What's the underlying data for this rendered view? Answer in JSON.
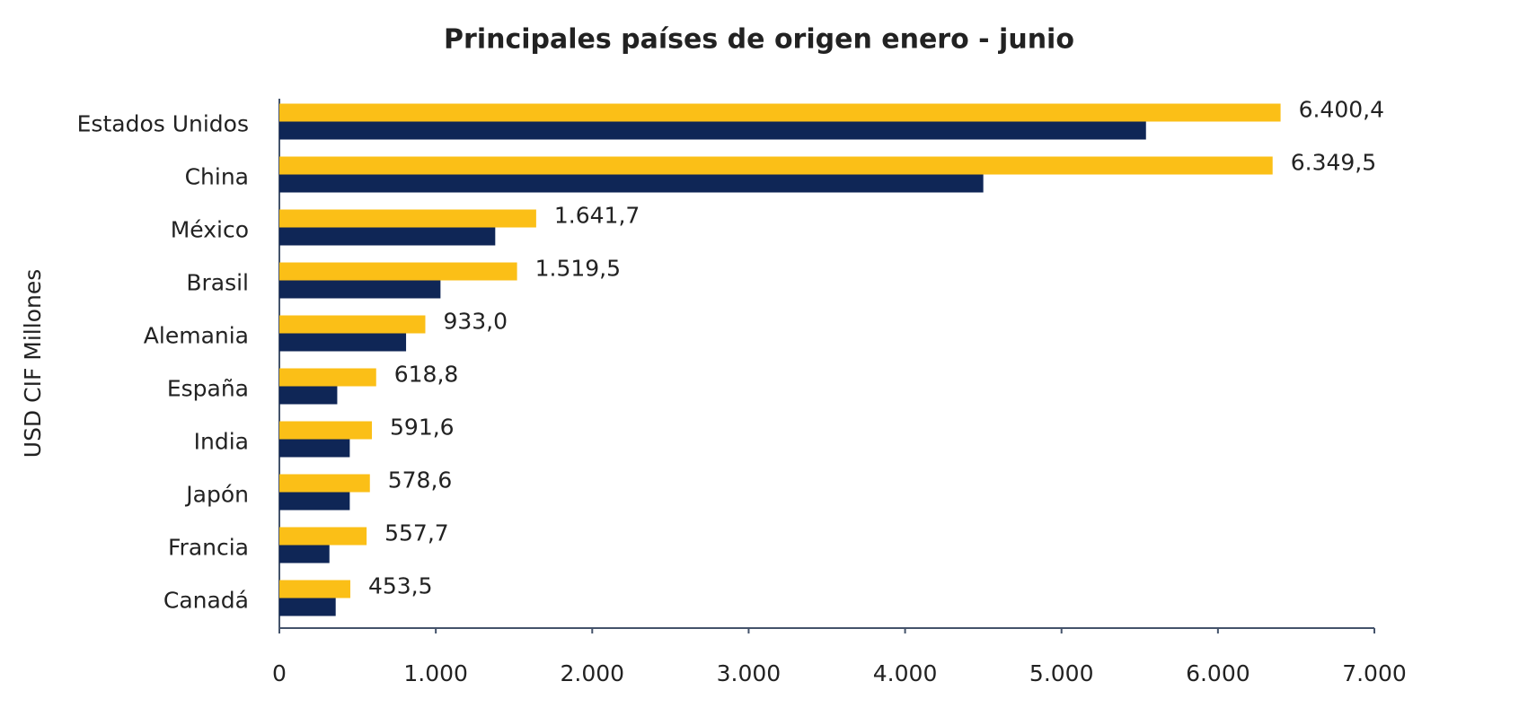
{
  "chart_data": {
    "type": "hbar",
    "title": "Principales países de origen enero - junio",
    "ylabel": "USD CIF Millones",
    "categories": [
      "Estados Unidos",
      "China",
      "México",
      "Brasil",
      "Alemania",
      "España",
      "India",
      "Japón",
      "Francia",
      "Canadá"
    ],
    "series": [
      {
        "color": "#fbbf17",
        "values": [
          6400.4,
          6349.5,
          1641.7,
          1519.5,
          933.0,
          618.8,
          591.6,
          578.6,
          557.7,
          453.5
        ],
        "value_labels": [
          "6.400,4",
          "6.349,5",
          "1.641,7",
          "1.519,5",
          "933,0",
          "618,8",
          "591,6",
          "578,6",
          "557,7",
          "453,5"
        ]
      },
      {
        "color": "#0f2656",
        "values": [
          5540,
          4500,
          1380,
          1030,
          810,
          370,
          450,
          450,
          320,
          360
        ]
      }
    ],
    "xlim": [
      0,
      7000
    ],
    "xticks": [
      0,
      {
        "value": 1000,
        "label": "1.000"
      },
      {
        "value": 2000,
        "label": "2.000"
      },
      {
        "value": 3000,
        "label": "3.000"
      },
      {
        "value": 4000,
        "label": "4.000"
      },
      {
        "value": 5000,
        "label": "5.000"
      },
      {
        "value": 6000,
        "label": "6.000"
      },
      {
        "value": 7000,
        "label": "7.000"
      }
    ],
    "grid": false
  }
}
